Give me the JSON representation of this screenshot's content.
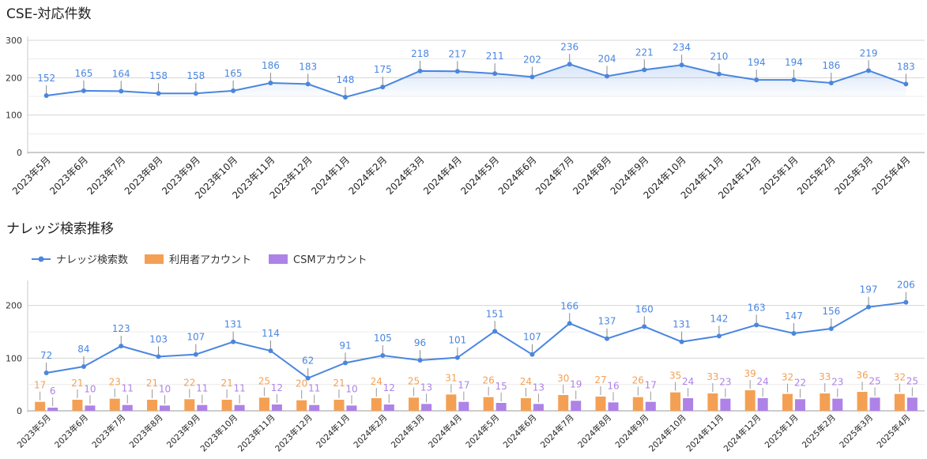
{
  "chart_data": [
    {
      "type": "line",
      "title": "CSE-対応件数",
      "categories": [
        "2023年5月",
        "2023年6月",
        "2023年7月",
        "2023年8月",
        "2023年9月",
        "2023年10月",
        "2023年11月",
        "2023年12月",
        "2024年1月",
        "2024年2月",
        "2024年3月",
        "2024年4月",
        "2024年5月",
        "2024年6月",
        "2024年7月",
        "2024年8月",
        "2024年9月",
        "2024年10月",
        "2024年11月",
        "2024年12月",
        "2025年1月",
        "2025年2月",
        "2025年3月",
        "2025年4月"
      ],
      "series": [
        {
          "values": [
            152,
            165,
            164,
            158,
            158,
            165,
            186,
            183,
            148,
            175,
            218,
            217,
            211,
            202,
            236,
            204,
            221,
            234,
            210,
            194,
            194,
            186,
            219,
            183
          ]
        }
      ],
      "yticks": [
        0,
        100,
        200,
        300
      ],
      "ylim": [
        0,
        300
      ],
      "grid": true,
      "legend": "none",
      "area_fill": true,
      "colors": {
        "line": "#4a86e0",
        "label": "#4a86e0"
      }
    },
    {
      "type": "bar",
      "title": "ナレッジ検索推移",
      "categories": [
        "2023年5月",
        "2023年6月",
        "2023年7月",
        "2023年8月",
        "2023年9月",
        "2023年10月",
        "2023年11月",
        "2023年12月",
        "2024年1月",
        "2024年2月",
        "2024年3月",
        "2024年4月",
        "2024年5月",
        "2024年6月",
        "2024年7月",
        "2024年8月",
        "2024年9月",
        "2024年10月",
        "2024年11月",
        "2024年12月",
        "2025年1月",
        "2025年2月",
        "2025年3月",
        "2025年4月"
      ],
      "series": [
        {
          "name": "ナレッジ検索数",
          "kind": "line",
          "color": "#4a86e0",
          "values": [
            72,
            84,
            123,
            103,
            107,
            131,
            114,
            62,
            91,
            105,
            96,
            101,
            151,
            107,
            166,
            137,
            160,
            131,
            142,
            163,
            147,
            156,
            197,
            206
          ]
        },
        {
          "name": "利用者アカウント",
          "kind": "bar",
          "color": "#f4a054",
          "values": [
            17,
            21,
            23,
            21,
            22,
            21,
            25,
            20,
            21,
            24,
            25,
            31,
            26,
            24,
            30,
            27,
            26,
            35,
            33,
            39,
            32,
            33,
            36,
            32
          ]
        },
        {
          "name": "CSMアカウント",
          "kind": "bar",
          "color": "#ae82e6",
          "values": [
            6,
            10,
            11,
            10,
            11,
            11,
            12,
            11,
            10,
            12,
            13,
            17,
            15,
            13,
            19,
            16,
            17,
            24,
            23,
            24,
            22,
            23,
            25,
            25
          ]
        }
      ],
      "yticks": [
        0,
        100,
        200
      ],
      "ylim": [
        0,
        240
      ],
      "grid": true,
      "legend": "top-left"
    }
  ]
}
